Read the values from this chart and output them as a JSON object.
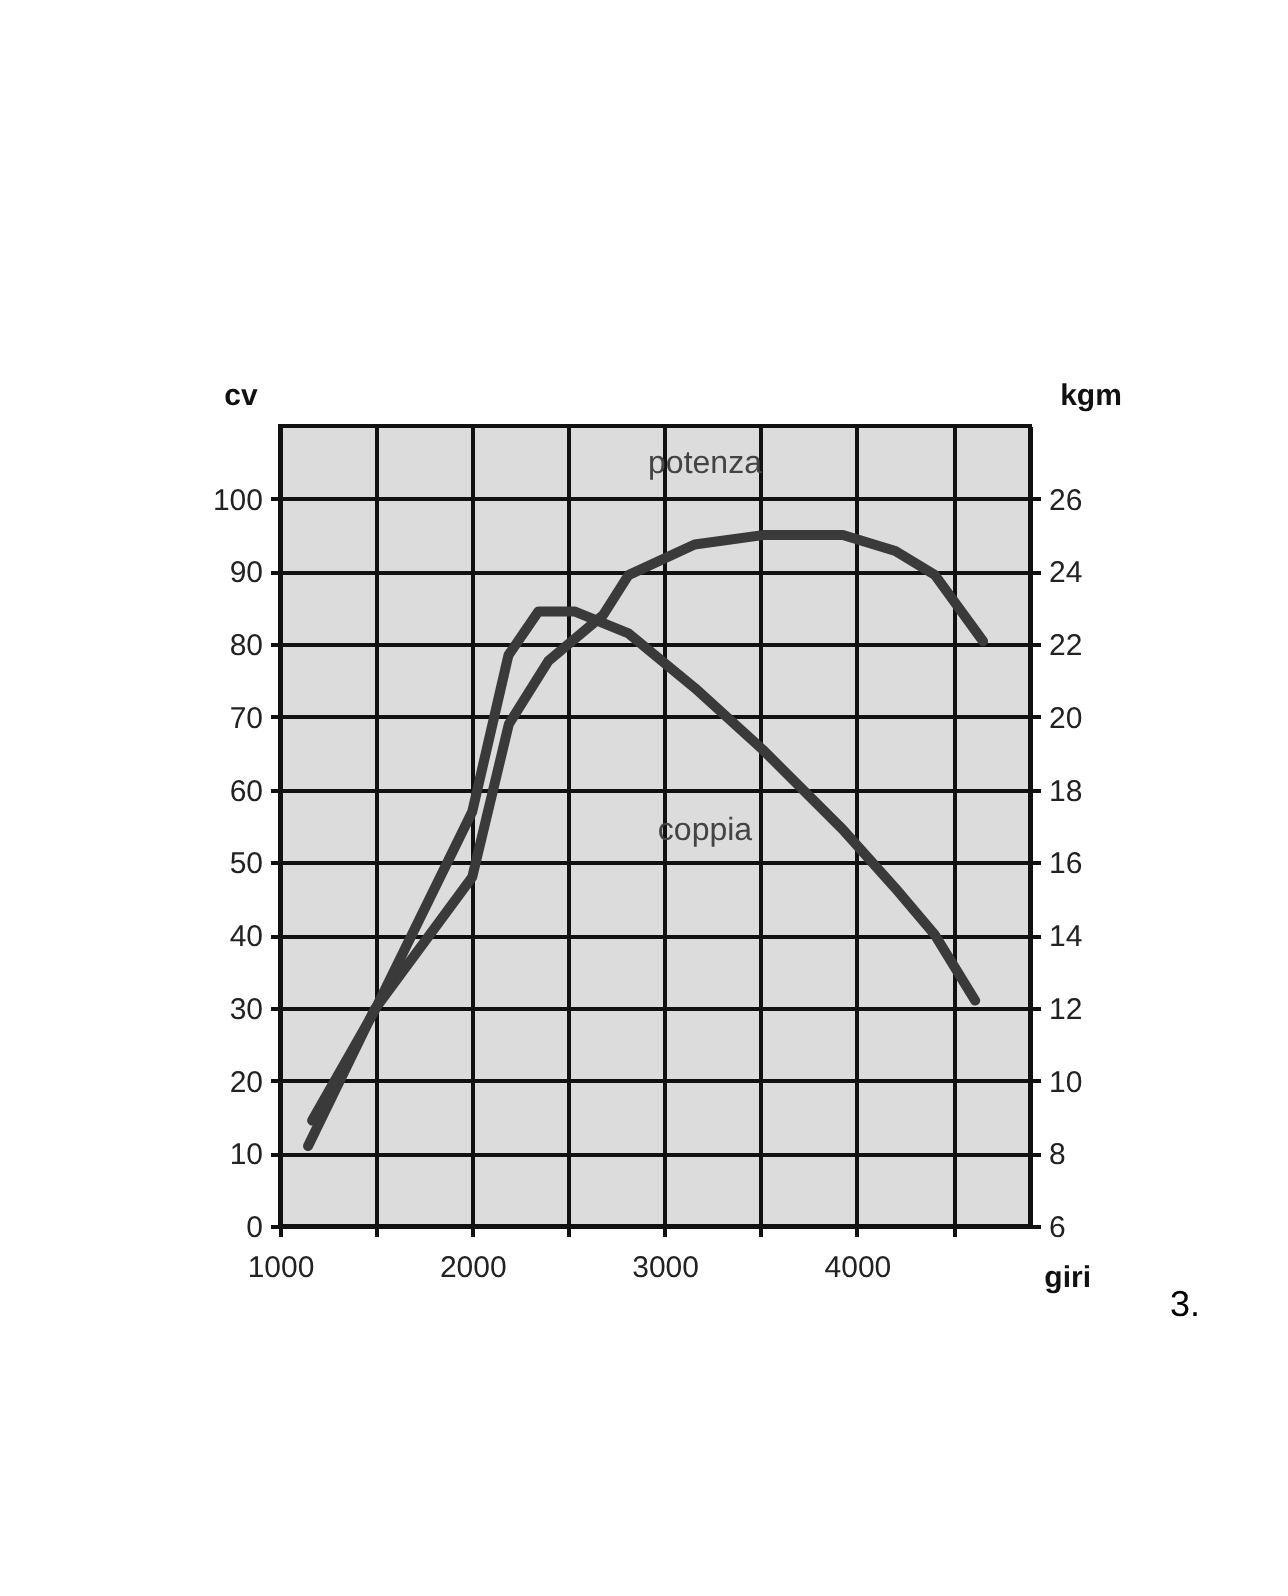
{
  "chart_data": {
    "type": "line",
    "xlabel": "giri",
    "ylabel": "cv",
    "y2label": "kgm",
    "xlim": [
      1000,
      4900
    ],
    "xticks": [
      1000,
      {
        "value": 1500,
        "label": null
      },
      2000,
      {
        "value": 2500,
        "label": null
      },
      3000,
      {
        "value": 3500,
        "label": null
      },
      4000,
      {
        "value": 4500,
        "label": null
      }
    ],
    "ylim": [
      0,
      110
    ],
    "yticks": [
      0,
      10,
      20,
      30,
      40,
      50,
      60,
      70,
      80,
      90,
      100
    ],
    "y2lim": [
      6,
      28
    ],
    "y2ticks": [
      6,
      8,
      10,
      12,
      14,
      16,
      18,
      20,
      22,
      24,
      26
    ],
    "grid": true,
    "legend": false,
    "marker": "none",
    "line_style": "solid",
    "annotations": [
      "3."
    ],
    "series": [
      {
        "name": "potenza",
        "color": "#3a3a3a",
        "x": [
          1146,
          1490,
          2000,
          2190,
          2396,
          2680,
          2812,
          3156,
          3510,
          3927,
          4200,
          4406,
          4656
        ],
        "values": [
          11,
          29.7,
          48,
          69,
          77.7,
          84,
          89.5,
          93.7,
          95,
          95,
          92.8,
          89.5,
          80.4
        ]
      },
      {
        "name": "coppia",
        "color": "#3a3a3a",
        "axis": "y2",
        "x": [
          1167,
          1490,
          2000,
          2188,
          2344,
          2531,
          2812,
          3156,
          3510,
          3927,
          4198,
          4406,
          4615
        ],
        "values": [
          8.9,
          11.9,
          17.4,
          21.7,
          22.9,
          22.9,
          22.3,
          20.8,
          19.1,
          16.9,
          15.3,
          14,
          12.2
        ]
      }
    ]
  }
}
